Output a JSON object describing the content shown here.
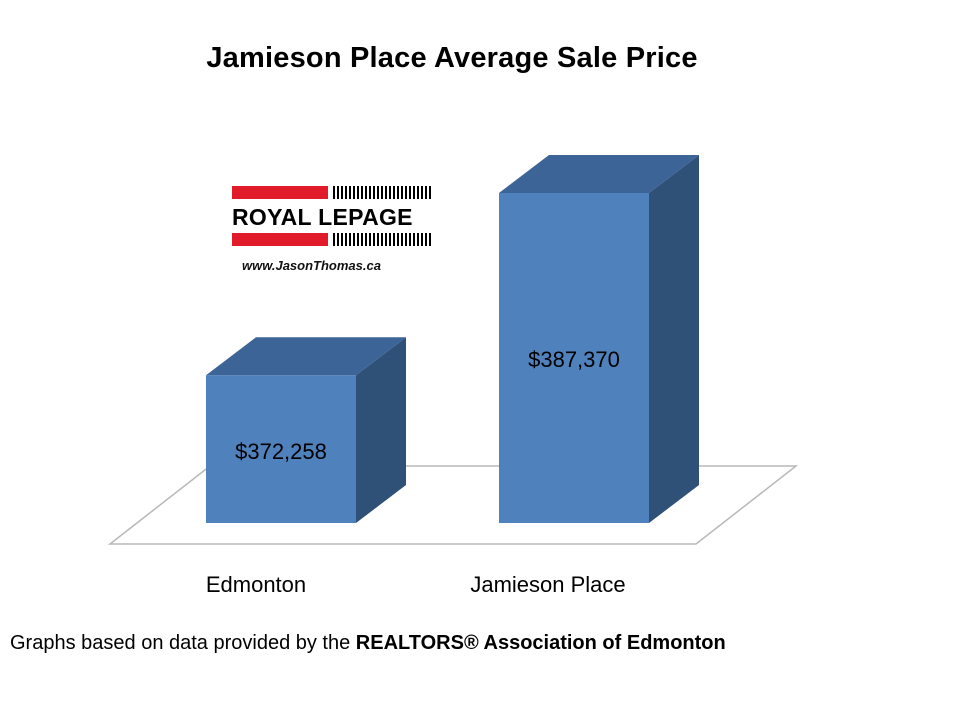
{
  "chart_data": {
    "type": "bar",
    "title": "Jamieson Place Average Sale Price",
    "categories": [
      "Edmonton",
      "Jamieson Place"
    ],
    "values": [
      372258,
      387370
    ],
    "data_labels": [
      "$372,258",
      "$387,370"
    ],
    "ylim": [
      360000,
      390000
    ],
    "grid": false,
    "legend": "none",
    "colors": {
      "front": "#4f81bd",
      "side": "#2f5077",
      "top": "#3d6496",
      "floor_line": "#b8b8b8"
    }
  },
  "logo": {
    "brand_text": "ROYAL LEPAGE",
    "url": "www.JasonThomas.ca",
    "colors": {
      "red": "#e21b2b",
      "black": "#000000"
    }
  },
  "footnote": {
    "prefix": "Graphs based on data provided by the ",
    "bold": "REALTORS® Association of Edmonton"
  }
}
